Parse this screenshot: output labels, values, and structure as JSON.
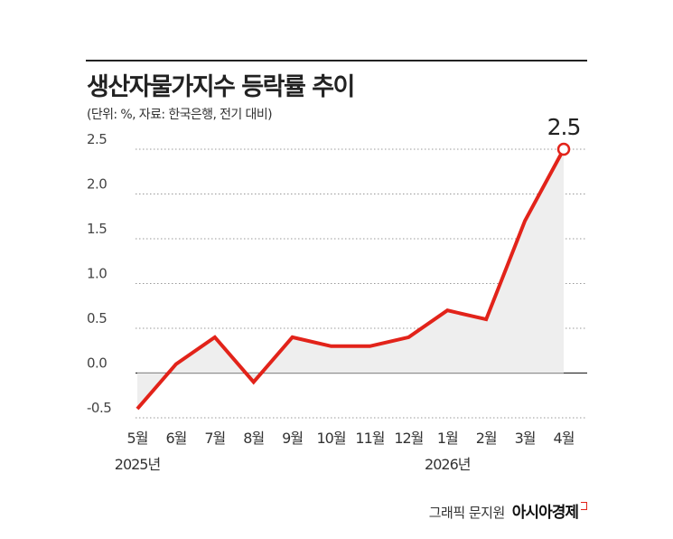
{
  "title": "생산자물가지수 등락률 추이",
  "subtitle": "(단위: %, 자료: 한국은행, 전기 대비)",
  "credit": {
    "author": "그래픽 문지원",
    "brand": "아시아경제"
  },
  "chart_data": {
    "type": "line",
    "categories": [
      "5월",
      "6월",
      "7월",
      "8월",
      "9월",
      "10월",
      "11월",
      "12월",
      "1월",
      "2월",
      "3월",
      "4월"
    ],
    "year_labels": [
      {
        "category_index": 0,
        "label": "2025년"
      },
      {
        "category_index": 8,
        "label": "2026년"
      }
    ],
    "values": [
      -0.4,
      0.1,
      0.4,
      -0.1,
      0.4,
      0.3,
      0.3,
      0.4,
      0.7,
      0.6,
      1.7,
      2.5
    ],
    "yticks": [
      -0.5,
      0.0,
      0.5,
      1.0,
      1.5,
      2.0,
      2.5
    ],
    "ytick_labels": [
      "-0.5",
      "0.0",
      "0.5",
      "1.0",
      "1.5",
      "2.0",
      "2.5"
    ],
    "ylim": [
      -0.5,
      2.5
    ],
    "highlight": {
      "index": 11,
      "label": "2.5"
    },
    "line_color": "#e2231a",
    "fill_color": "#eeeeee",
    "grid": true
  }
}
